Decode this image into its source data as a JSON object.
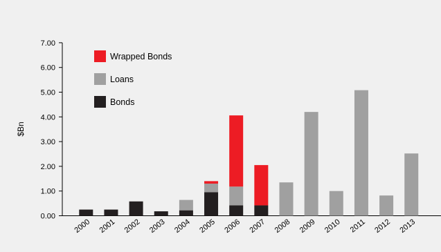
{
  "chart_data": {
    "type": "bar",
    "stacked": true,
    "title": "",
    "xlabel": "",
    "ylabel": "$Bn",
    "ylim": [
      0,
      7
    ],
    "yticks": [
      "0.00",
      "1.00",
      "2.00",
      "3.00",
      "4.00",
      "5.00",
      "6.00",
      "7.00"
    ],
    "grid": false,
    "legend_position": "top-left",
    "categories": [
      "2000",
      "2001",
      "2002",
      "2003",
      "2004",
      "2005",
      "2006",
      "2007",
      "2008",
      "2009",
      "2010",
      "2011",
      "2012",
      "2013"
    ],
    "series": [
      {
        "name": "Bonds",
        "color": "#231f20",
        "values": [
          0.25,
          0.25,
          0.58,
          0.18,
          0.22,
          0.95,
          0.42,
          0.42,
          0,
          0,
          0,
          0,
          0,
          0
        ]
      },
      {
        "name": "Loans",
        "color": "#a0a0a0",
        "values": [
          0,
          0,
          0,
          0,
          0.42,
          0.35,
          0.76,
          0,
          1.35,
          4.2,
          1.0,
          5.08,
          0.82,
          2.52
        ]
      },
      {
        "name": "Wrapped Bonds",
        "color": "#ed1c24",
        "values": [
          0,
          0,
          0,
          0,
          0,
          0.1,
          2.88,
          1.63,
          0,
          0,
          0,
          0,
          0,
          0
        ]
      }
    ],
    "legend_order": [
      "Wrapped Bonds",
      "Loans",
      "Bonds"
    ]
  }
}
